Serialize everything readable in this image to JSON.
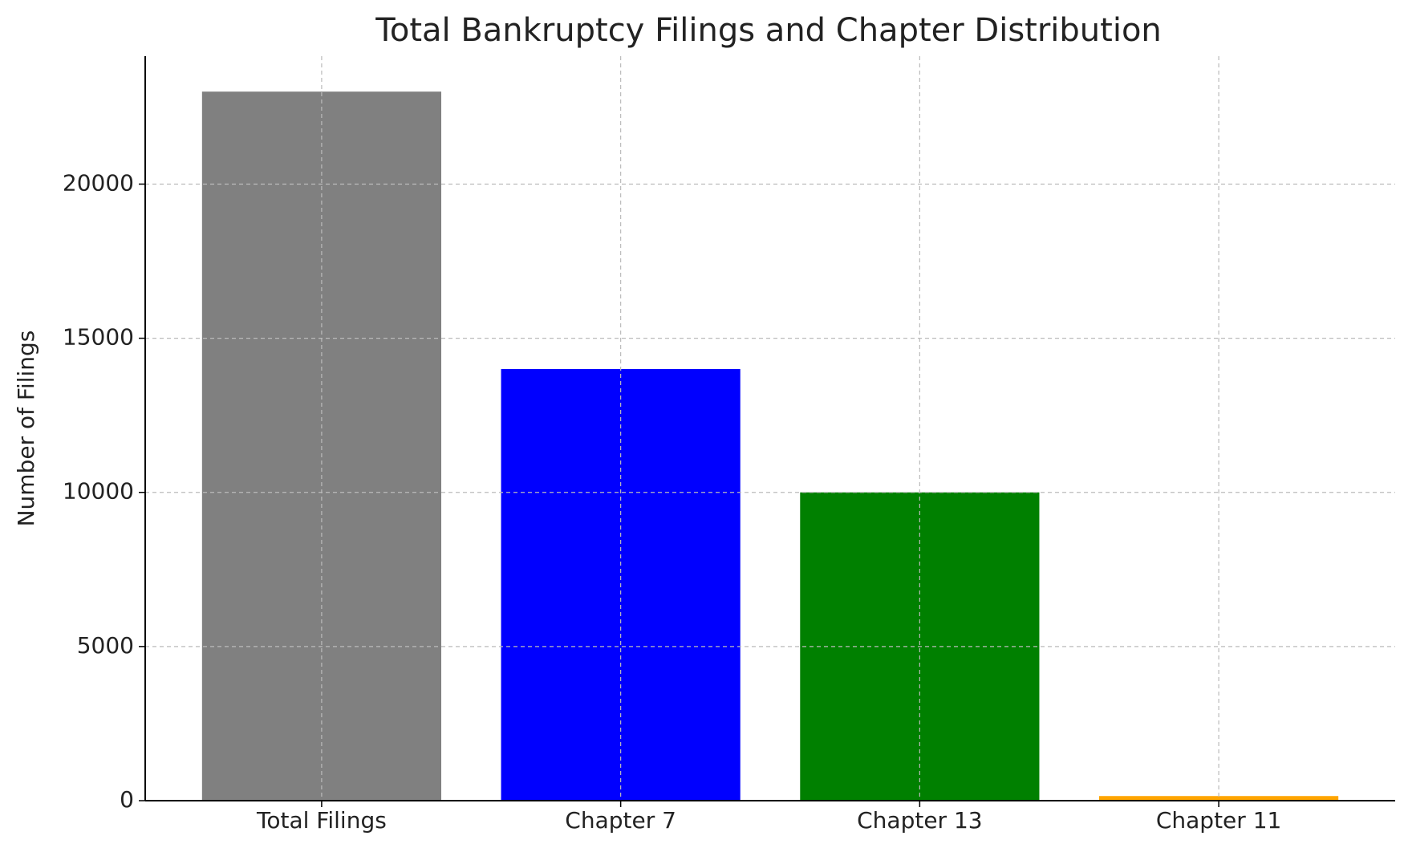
{
  "chart_data": {
    "type": "bar",
    "title": "Total Bankruptcy Filings and Chapter Distribution",
    "y_label": "Number of Filings",
    "categories": [
      "Total Filings",
      "Chapter 7",
      "Chapter 13",
      "Chapter 11"
    ],
    "values": [
      23000,
      14000,
      10000,
      150
    ],
    "colors": [
      "#808080",
      "#0000ff",
      "#008000",
      "#ffa500"
    ],
    "ylim": [
      0,
      24150
    ],
    "yticks": [
      0,
      5000,
      10000,
      15000,
      20000
    ],
    "grid": true
  }
}
